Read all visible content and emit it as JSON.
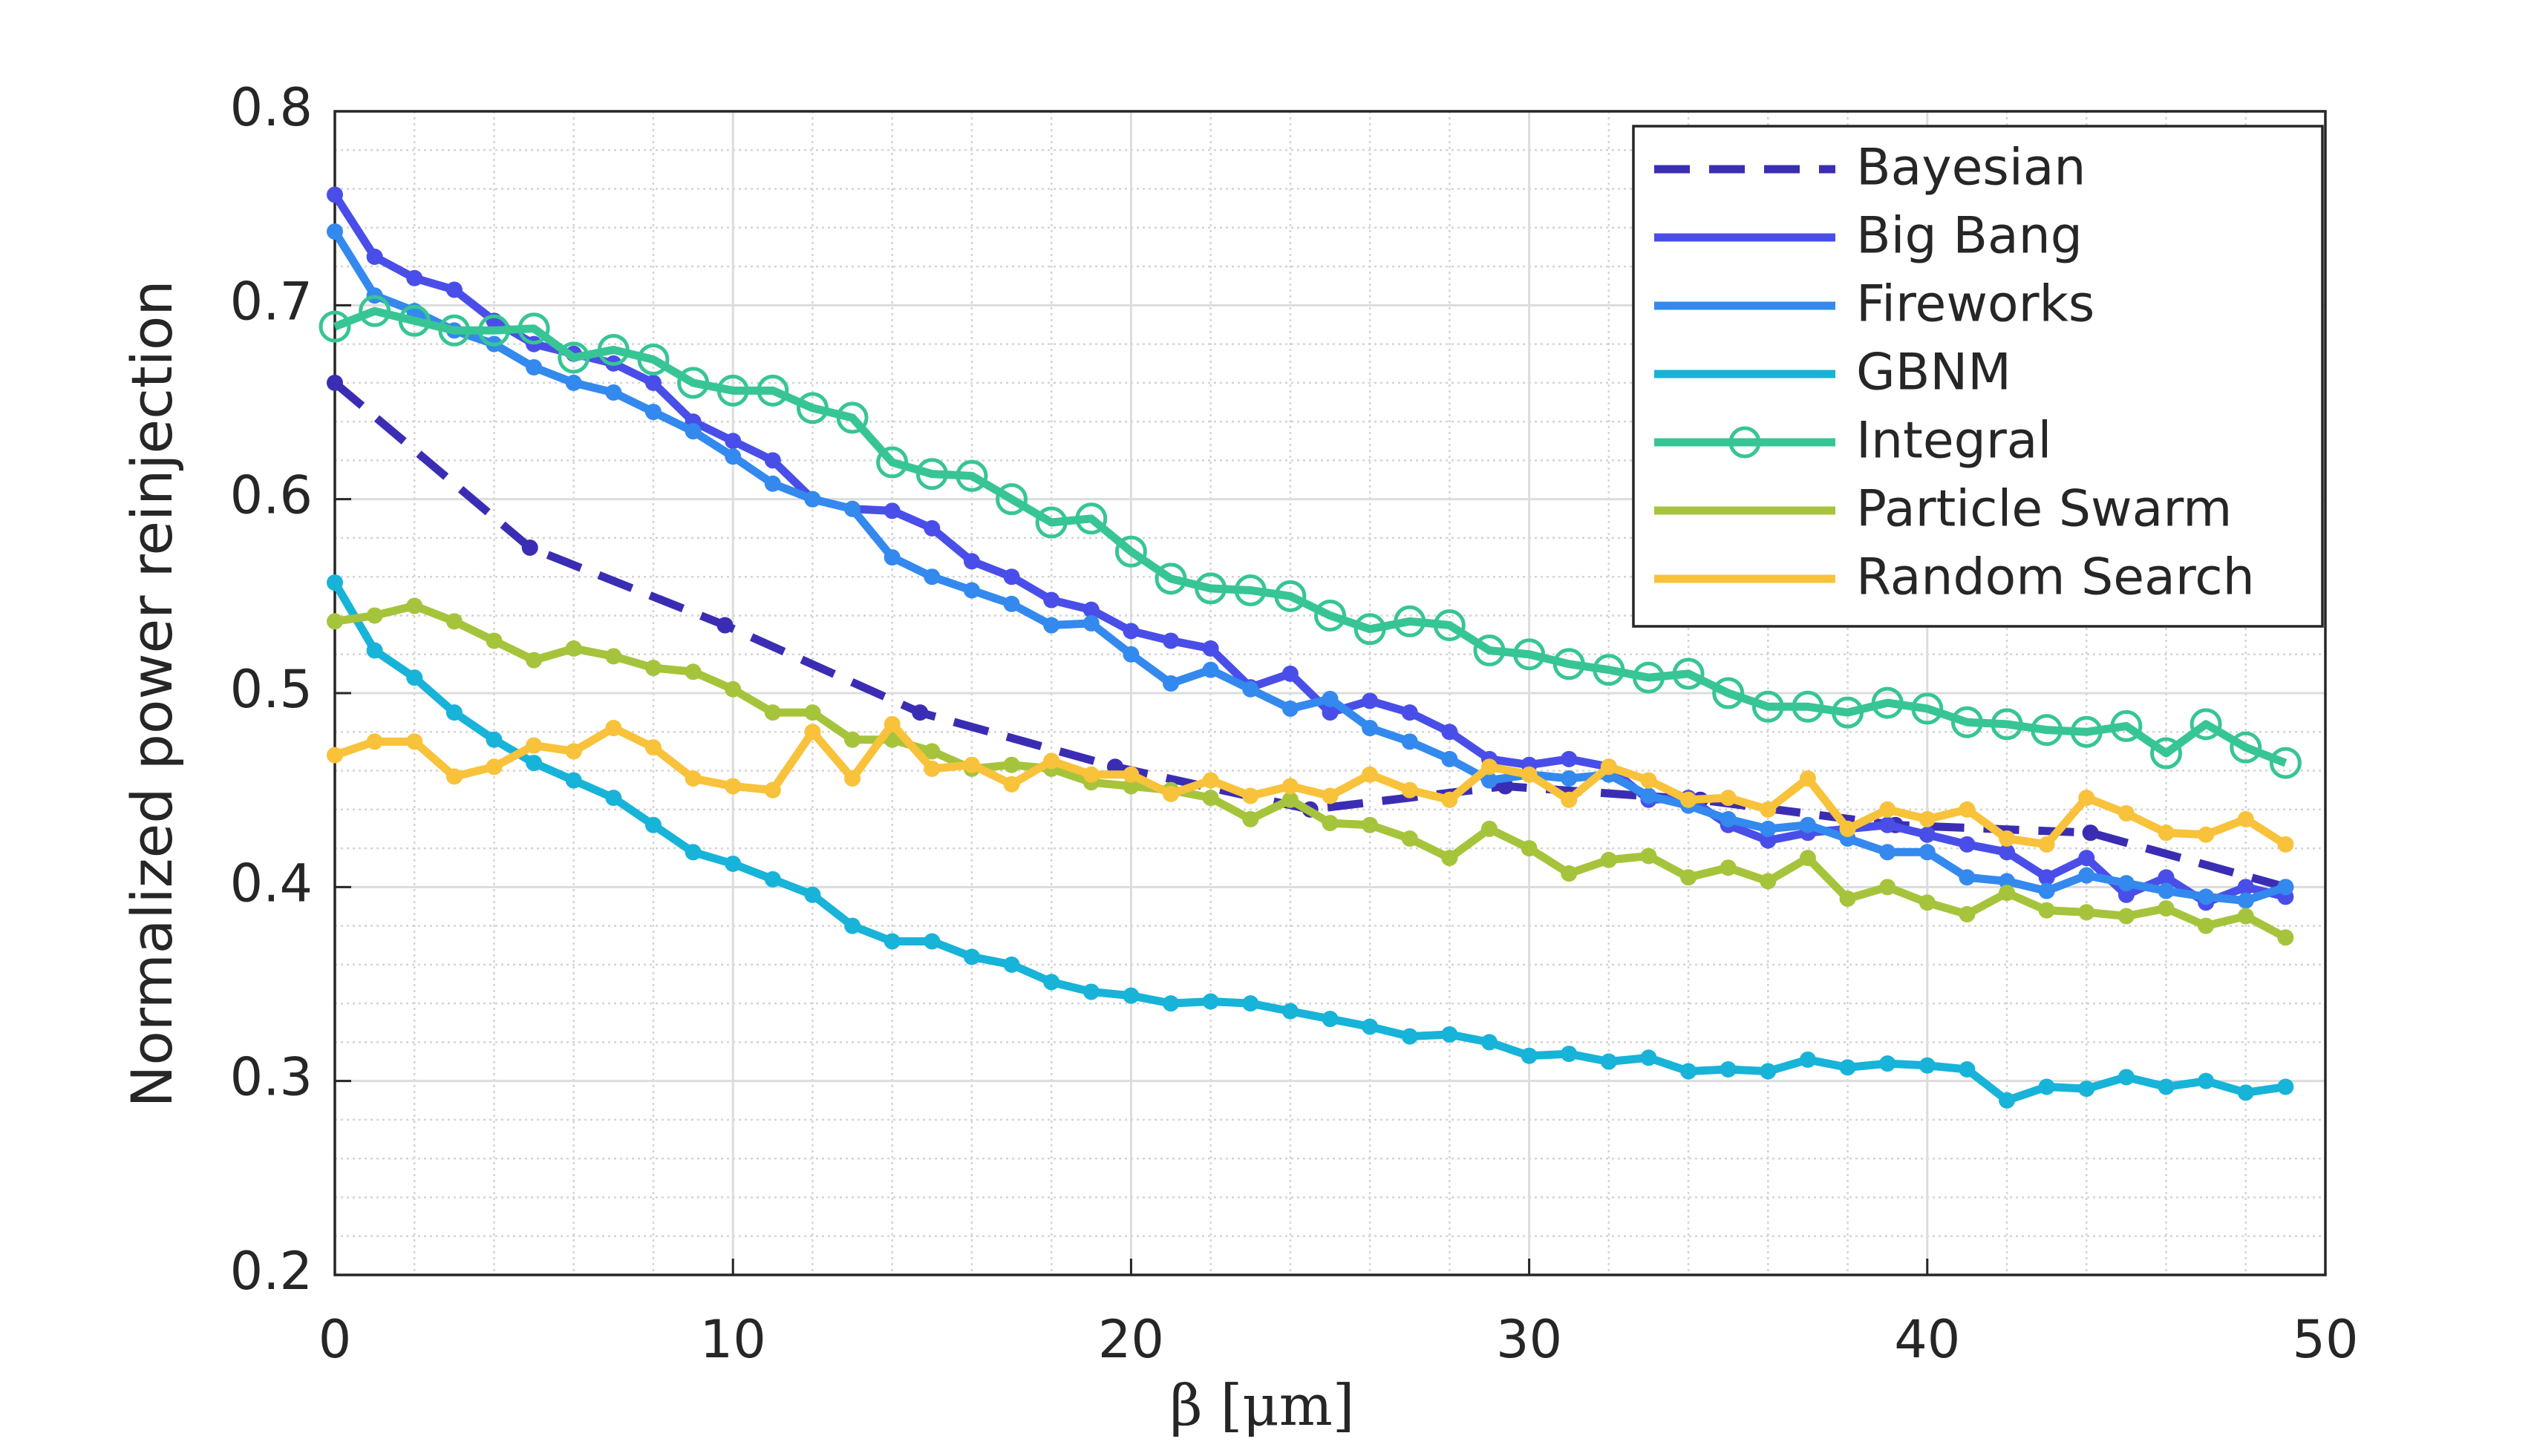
{
  "chart_data": {
    "type": "line",
    "xlabel": "β [μm]",
    "ylabel": "Normalized power reinjection",
    "xlim": [
      0,
      50
    ],
    "xticks": [
      0,
      10,
      20,
      30,
      40,
      50
    ],
    "ylim": [
      0.2,
      0.8
    ],
    "yticks": [
      0.2,
      0.3,
      0.4,
      0.5,
      0.6,
      0.7,
      0.8
    ],
    "xminorticks": [
      2,
      4,
      6,
      8,
      12,
      14,
      16,
      18,
      22,
      24,
      26,
      28,
      32,
      34,
      36,
      38,
      42,
      44,
      46,
      48
    ],
    "yminorticks": [
      0.22,
      0.24,
      0.26,
      0.28,
      0.32,
      0.34,
      0.36,
      0.38,
      0.42,
      0.44,
      0.46,
      0.48,
      0.52,
      0.54,
      0.56,
      0.58,
      0.62,
      0.64,
      0.66,
      0.68,
      0.72,
      0.74,
      0.76,
      0.78
    ],
    "grid": true,
    "legend": "upper right",
    "x": [
      0,
      1,
      2,
      3,
      4,
      5,
      6,
      7,
      8,
      9,
      10,
      11,
      12,
      13,
      14,
      15,
      16,
      17,
      18,
      19,
      20,
      21,
      22,
      23,
      24,
      25,
      26,
      27,
      28,
      29,
      30,
      31,
      32,
      33,
      34,
      35,
      36,
      37,
      38,
      39,
      40,
      41,
      42,
      43,
      44,
      45,
      46,
      47,
      48,
      49
    ],
    "series": [
      {
        "name": "Bayesian",
        "color": "#3b2db3",
        "dash": true,
        "marker": "dot",
        "x": [
          0,
          4.9,
          9.8,
          14.7,
          19.6,
          24.5,
          29.4,
          34.3,
          39.2,
          44.1,
          49
        ],
        "values": [
          0.66,
          0.575,
          0.535,
          0.49,
          0.462,
          0.44,
          0.452,
          0.445,
          0.432,
          0.428,
          0.4
        ]
      },
      {
        "name": "Big Bang",
        "color": "#4a4ee8",
        "marker": "dot",
        "values": [
          0.757,
          0.725,
          0.714,
          0.708,
          0.692,
          0.68,
          0.675,
          0.67,
          0.66,
          0.64,
          0.63,
          0.62,
          0.6,
          0.595,
          0.594,
          0.585,
          0.568,
          0.56,
          0.548,
          0.543,
          0.532,
          0.527,
          0.523,
          0.503,
          0.51,
          0.49,
          0.496,
          0.49,
          0.48,
          0.466,
          0.463,
          0.466,
          0.462,
          0.445,
          0.446,
          0.432,
          0.424,
          0.428,
          0.43,
          0.432,
          0.427,
          0.422,
          0.418,
          0.405,
          0.415,
          0.396,
          0.405,
          0.392,
          0.4,
          0.395
        ]
      },
      {
        "name": "Fireworks",
        "color": "#3389ee",
        "marker": "dot",
        "values": [
          0.738,
          0.705,
          0.697,
          0.687,
          0.68,
          0.668,
          0.66,
          0.655,
          0.645,
          0.635,
          0.622,
          0.608,
          0.6,
          0.595,
          0.57,
          0.56,
          0.553,
          0.546,
          0.535,
          0.536,
          0.52,
          0.505,
          0.512,
          0.502,
          0.492,
          0.497,
          0.482,
          0.475,
          0.466,
          0.455,
          0.458,
          0.456,
          0.458,
          0.447,
          0.442,
          0.435,
          0.43,
          0.432,
          0.425,
          0.418,
          0.418,
          0.405,
          0.403,
          0.398,
          0.406,
          0.402,
          0.398,
          0.395,
          0.393,
          0.4
        ]
      },
      {
        "name": "GBNM",
        "color": "#18b3d8",
        "marker": "dot",
        "values": [
          0.557,
          0.522,
          0.508,
          0.49,
          0.476,
          0.464,
          0.455,
          0.446,
          0.432,
          0.418,
          0.412,
          0.404,
          0.396,
          0.38,
          0.372,
          0.372,
          0.364,
          0.36,
          0.351,
          0.346,
          0.344,
          0.34,
          0.341,
          0.34,
          0.336,
          0.332,
          0.328,
          0.323,
          0.324,
          0.32,
          0.313,
          0.314,
          0.31,
          0.312,
          0.305,
          0.306,
          0.305,
          0.311,
          0.307,
          0.309,
          0.308,
          0.306,
          0.29,
          0.297,
          0.296,
          0.302,
          0.297,
          0.3,
          0.294,
          0.297
        ]
      },
      {
        "name": "Integral",
        "color": "#37c595",
        "marker": "circle",
        "values": [
          0.689,
          0.697,
          0.692,
          0.687,
          0.687,
          0.688,
          0.673,
          0.677,
          0.672,
          0.66,
          0.656,
          0.656,
          0.647,
          0.642,
          0.619,
          0.613,
          0.612,
          0.6,
          0.588,
          0.59,
          0.573,
          0.559,
          0.554,
          0.553,
          0.55,
          0.54,
          0.533,
          0.537,
          0.535,
          0.522,
          0.52,
          0.515,
          0.512,
          0.508,
          0.51,
          0.5,
          0.493,
          0.493,
          0.49,
          0.495,
          0.492,
          0.485,
          0.484,
          0.481,
          0.48,
          0.483,
          0.469,
          0.484,
          0.472,
          0.464
        ]
      },
      {
        "name": "Particle Swarm",
        "color": "#a6c43b",
        "marker": "dot",
        "values": [
          0.537,
          0.54,
          0.545,
          0.537,
          0.527,
          0.517,
          0.523,
          0.519,
          0.513,
          0.511,
          0.502,
          0.49,
          0.49,
          0.476,
          0.476,
          0.47,
          0.461,
          0.463,
          0.461,
          0.454,
          0.452,
          0.45,
          0.446,
          0.435,
          0.445,
          0.433,
          0.432,
          0.425,
          0.415,
          0.43,
          0.42,
          0.407,
          0.414,
          0.416,
          0.405,
          0.41,
          0.403,
          0.415,
          0.394,
          0.4,
          0.392,
          0.386,
          0.397,
          0.388,
          0.387,
          0.385,
          0.389,
          0.38,
          0.385,
          0.374
        ]
      },
      {
        "name": "Random Search",
        "color": "#f8c23a",
        "marker": "dot",
        "values": [
          0.468,
          0.475,
          0.475,
          0.457,
          0.462,
          0.473,
          0.47,
          0.482,
          0.472,
          0.456,
          0.452,
          0.45,
          0.48,
          0.456,
          0.484,
          0.461,
          0.463,
          0.453,
          0.465,
          0.458,
          0.458,
          0.448,
          0.455,
          0.447,
          0.452,
          0.447,
          0.458,
          0.45,
          0.445,
          0.462,
          0.458,
          0.445,
          0.462,
          0.455,
          0.445,
          0.446,
          0.44,
          0.456,
          0.43,
          0.44,
          0.435,
          0.44,
          0.425,
          0.422,
          0.446,
          0.438,
          0.428,
          0.427,
          0.435,
          0.422
        ]
      }
    ]
  }
}
